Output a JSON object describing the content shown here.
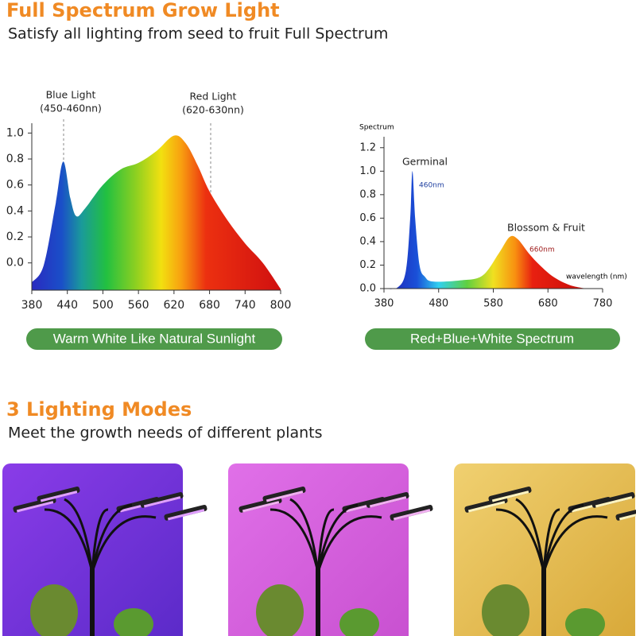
{
  "header": {
    "title": "Full Spectrum Grow Light",
    "subtitle": "Satisfy all lighting from seed to fruit Full Spectrum"
  },
  "chart_data": [
    {
      "type": "area",
      "caption": "Warm White Like Natural Sunlight",
      "annotations": [
        "Blue Light",
        "(450-460nn)",
        "Red Light",
        "(620-630nn)"
      ],
      "x": [
        380,
        400,
        420,
        433,
        445,
        455,
        470,
        500,
        530,
        560,
        590,
        620,
        640,
        660,
        680,
        710,
        740,
        770,
        800
      ],
      "values": [
        -0.15,
        -0.02,
        0.45,
        0.78,
        0.5,
        0.36,
        0.42,
        0.6,
        0.72,
        0.77,
        0.86,
        0.98,
        0.92,
        0.75,
        0.55,
        0.33,
        0.15,
        0.0,
        -0.2
      ],
      "xlim": [
        380,
        800
      ],
      "ylim": [
        -0.21,
        1.1
      ],
      "xticks": [
        380,
        440,
        500,
        560,
        620,
        680,
        740,
        800
      ],
      "yticks": [
        {
          "value": 0,
          "label": "0.0"
        },
        0.2,
        0.4,
        0.6,
        0.8,
        {
          "value": 1,
          "label": "1.0"
        }
      ]
    },
    {
      "type": "area",
      "caption": "Red+Blue+White Spectrum",
      "y_label": "Spectrum",
      "x_label": "wavelength (nm)",
      "annotations": [
        "Germinal",
        "460nm",
        "Blossom & Fruit",
        "660nm"
      ],
      "x": [
        380,
        405,
        420,
        428,
        432,
        437,
        445,
        455,
        470,
        520,
        560,
        590,
        610,
        625,
        645,
        665,
        690,
        720,
        750
      ],
      "values": [
        0,
        0.01,
        0.15,
        0.6,
        1.0,
        0.6,
        0.2,
        0.1,
        0.06,
        0.07,
        0.11,
        0.3,
        0.44,
        0.42,
        0.3,
        0.2,
        0.1,
        0.03,
        0
      ],
      "xlim": [
        380,
        780
      ],
      "ylim": [
        0,
        1.3
      ],
      "xticks": [
        380,
        480,
        580,
        680,
        780
      ],
      "yticks": [
        {
          "value": 0,
          "label": "0.0"
        },
        0.2,
        0.4,
        0.6,
        0.8,
        {
          "value": 1,
          "label": "1.0"
        },
        1.2
      ]
    }
  ],
  "modes": {
    "title": "3 Lighting Modes",
    "subtitle": "Meet the growth needs of different plants"
  }
}
